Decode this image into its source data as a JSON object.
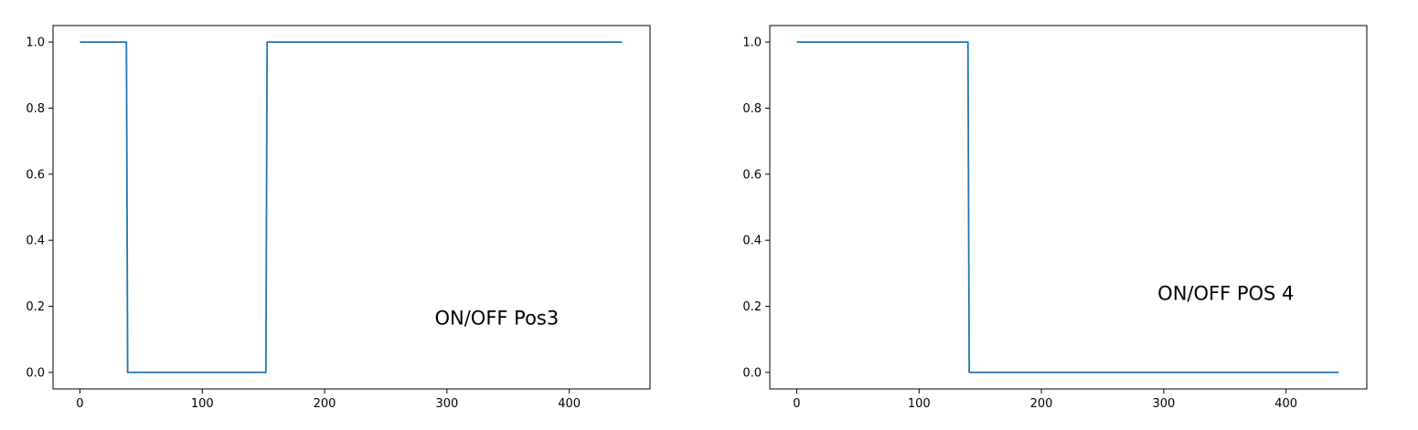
{
  "chart_data": [
    {
      "type": "line",
      "title": "",
      "xlabel": "",
      "ylabel": "",
      "xlim": [
        -22,
        466
      ],
      "ylim": [
        -0.05,
        1.05
      ],
      "xticks": [
        0,
        100,
        200,
        300,
        400
      ],
      "yticks": [
        0.0,
        0.2,
        0.4,
        0.6,
        0.8,
        1.0
      ],
      "xtick_labels": [
        "0",
        "100",
        "200",
        "300",
        "400"
      ],
      "ytick_labels": [
        "0.0",
        "0.2",
        "0.4",
        "0.6",
        "0.8",
        "1.0"
      ],
      "grid": false,
      "annotation": {
        "text": "ON/OFF Pos3",
        "x": 290,
        "y": 0.145
      },
      "series": [
        {
          "color": "#1f77b4",
          "x": [
            0,
            38,
            39,
            152,
            153,
            443
          ],
          "y": [
            1,
            1,
            0,
            0,
            1,
            1
          ]
        }
      ]
    },
    {
      "type": "line",
      "title": "",
      "xlabel": "",
      "ylabel": "",
      "xlim": [
        -22,
        466
      ],
      "ylim": [
        -0.05,
        1.05
      ],
      "xticks": [
        0,
        100,
        200,
        300,
        400
      ],
      "yticks": [
        0.0,
        0.2,
        0.4,
        0.6,
        0.8,
        1.0
      ],
      "xtick_labels": [
        "0",
        "100",
        "200",
        "300",
        "400"
      ],
      "ytick_labels": [
        "0.0",
        "0.2",
        "0.4",
        "0.6",
        "0.8",
        "1.0"
      ],
      "grid": false,
      "annotation": {
        "text": "ON/OFF POS 4",
        "x": 295,
        "y": 0.22
      },
      "series": [
        {
          "color": "#1f77b4",
          "x": [
            0,
            140,
            141,
            443
          ],
          "y": [
            1,
            1,
            0,
            0
          ]
        }
      ]
    }
  ]
}
